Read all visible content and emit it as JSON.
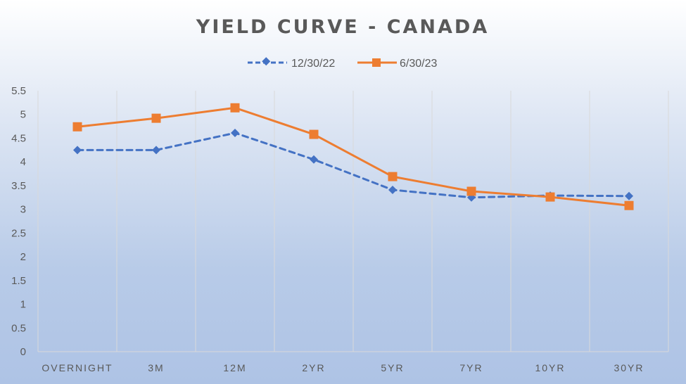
{
  "chart_data": {
    "type": "line",
    "title": "YIELD CURVE - CANADA",
    "xlabel": "",
    "ylabel": "",
    "categories": [
      "OVERNIGHT",
      "3M",
      "12M",
      "2YR",
      "5YR",
      "7YR",
      "10YR",
      "30YR"
    ],
    "ylim": [
      0,
      5.5
    ],
    "yticks": [
      "0",
      "0.5",
      "1",
      "1.5",
      "2",
      "2.5",
      "3",
      "3.5",
      "4",
      "4.5",
      "5",
      "5.5"
    ],
    "grid": "vertical",
    "legend_position": "top-center",
    "series": [
      {
        "name": "12/30/22",
        "values": [
          4.25,
          4.25,
          4.61,
          4.05,
          3.41,
          3.25,
          3.29,
          3.28
        ],
        "color": "#4472c4",
        "line_style": "dashed",
        "marker": "diamond"
      },
      {
        "name": "6/30/23",
        "values": [
          4.74,
          4.92,
          5.14,
          4.58,
          3.69,
          3.38,
          3.26,
          3.08
        ],
        "color": "#ed7d31",
        "line_style": "solid",
        "marker": "square"
      }
    ]
  }
}
